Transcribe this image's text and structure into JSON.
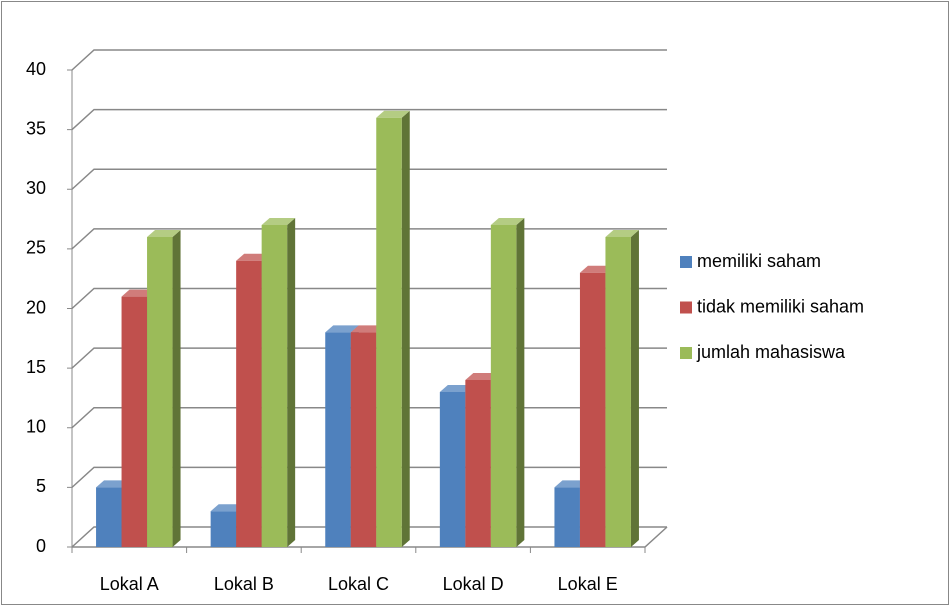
{
  "chart_data": {
    "type": "bar3d",
    "categories": [
      "Lokal A",
      "Lokal B",
      "Lokal C",
      "Lokal D",
      "Lokal E"
    ],
    "series": [
      {
        "name": "memiliki saham",
        "color": "#4f81bd",
        "values": [
          5,
          3,
          18,
          13,
          5
        ]
      },
      {
        "name": "tidak memiliki saham",
        "color": "#c0504d",
        "values": [
          21,
          24,
          18,
          14,
          23
        ]
      },
      {
        "name": "jumlah mahasiswa",
        "color": "#9bbb59",
        "values": [
          26,
          27,
          36,
          27,
          26
        ]
      }
    ],
    "ylim": [
      0,
      40
    ],
    "yticks": [
      0,
      5,
      10,
      15,
      20,
      25,
      30,
      35,
      40
    ],
    "grid": true,
    "legend": "right"
  }
}
